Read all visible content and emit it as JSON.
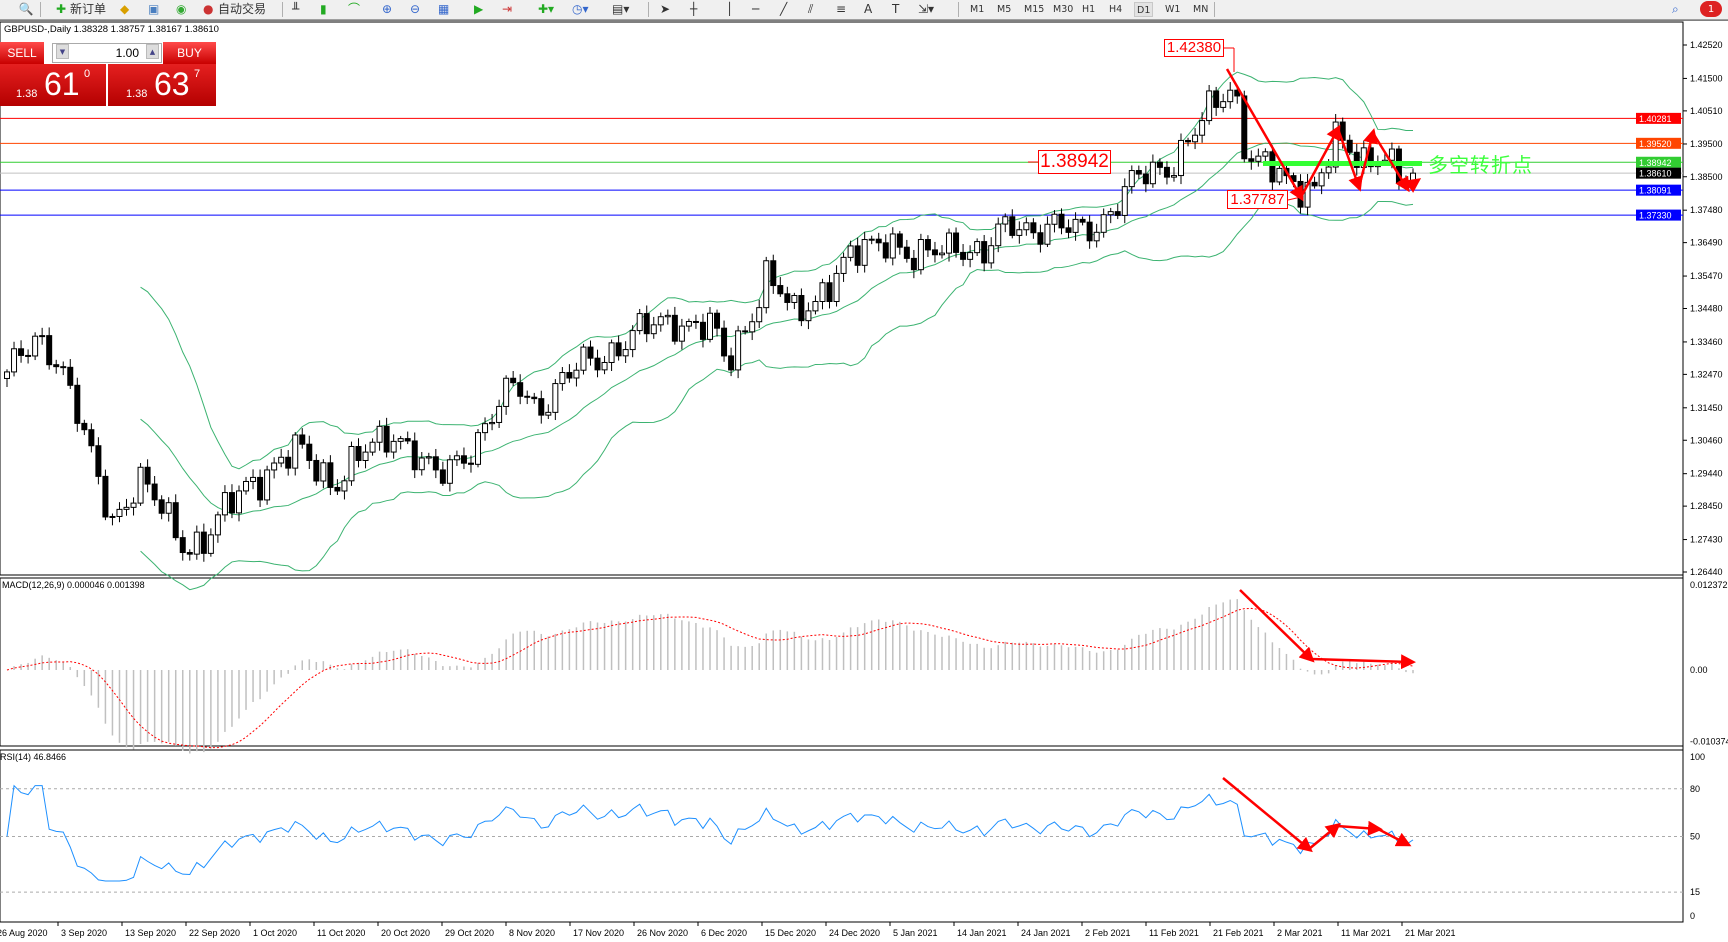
{
  "toolbar": {
    "new_order": "新订单",
    "auto_trading": "自动交易",
    "timeframes": [
      "M1",
      "M5",
      "M15",
      "M30",
      "H1",
      "H4",
      "D1",
      "W1",
      "MN"
    ],
    "active_timeframe": "D1"
  },
  "chart_title": "GBPUSD-,Daily  1.38328 1.38757 1.38167 1.38610",
  "one_click": {
    "sell": "SELL",
    "buy": "BUY",
    "volume": "1.00",
    "sell_prefix": "1.38",
    "sell_big": "61",
    "sell_point": "0",
    "buy_prefix": "1.38",
    "buy_big": "63",
    "buy_point": "7"
  },
  "macd_label": "MACD(12,26,9) 0.000046 0.001398",
  "rsi_label": "RSI(14) 46.8466",
  "annotations": {
    "high": "1.42380",
    "pivot": "1.38942",
    "low": "1.37787",
    "pivot_text": "多空转折点"
  },
  "colors": {
    "bull": "#ffffff",
    "bear": "#000000",
    "bands": "#3cb371",
    "macd_hist": "#c0c0c0",
    "macd_signal": "#ff0000",
    "rsi": "#1e90ff",
    "arrows": "#ff0000",
    "pivot": "#33ff33"
  },
  "chart_data": {
    "type": "candlestick",
    "symbol": "GBPUSD-",
    "timeframe": "Daily",
    "last_bar": {
      "open": 1.38328,
      "high": 1.38757,
      "low": 1.38167,
      "close": 1.3861
    },
    "price_ticks": [
      "1.42520",
      "1.41500",
      "1.40510",
      "1.39500",
      "1.38500",
      "1.37480",
      "1.36490",
      "1.35470",
      "1.34480",
      "1.33460",
      "1.32470",
      "1.31450",
      "1.30460",
      "1.29440",
      "1.28450",
      "1.27430",
      "1.26440"
    ],
    "ylim": [
      1.2644,
      1.4252
    ],
    "levels": [
      {
        "value": "1.40281",
        "color": "#ff0000"
      },
      {
        "value": "1.39520",
        "color": "#ff4500"
      },
      {
        "value": "1.38942",
        "color": "#32cd32"
      },
      {
        "value": "1.38610",
        "color": "#000000",
        "line": "#c0c0c0"
      },
      {
        "value": "1.38091",
        "color": "#0000ff"
      },
      {
        "value": "1.37330",
        "color": "#0000ff"
      }
    ],
    "x_labels": [
      "26 Aug 2020",
      "3 Sep 2020",
      "13 Sep 2020",
      "22 Sep 2020",
      "1 Oct 2020",
      "11 Oct 2020",
      "20 Oct 2020",
      "29 Oct 2020",
      "8 Nov 2020",
      "17 Nov 2020",
      "26 Nov 2020",
      "6 Dec 2020",
      "15 Dec 2020",
      "24 Dec 2020",
      "5 Jan 2021",
      "14 Jan 2021",
      "24 Jan 2021",
      "2 Feb 2021",
      "11 Feb 2021",
      "21 Feb 2021",
      "2 Mar 2021",
      "11 Mar 2021",
      "21 Mar 2021"
    ],
    "closes_approx": [
      [
        "2020-08-26",
        1.322
      ],
      [
        "2020-08-31",
        1.337
      ],
      [
        "2020-09-03",
        1.33
      ],
      [
        "2020-09-08",
        1.298
      ],
      [
        "2020-09-11",
        1.281
      ],
      [
        "2020-09-15",
        1.292
      ],
      [
        "2020-09-22",
        1.273
      ],
      [
        "2020-09-25",
        1.274
      ],
      [
        "2020-10-01",
        1.292
      ],
      [
        "2020-10-09",
        1.301
      ],
      [
        "2020-10-14",
        1.292
      ],
      [
        "2020-10-20",
        1.303
      ],
      [
        "2020-10-23",
        1.308
      ],
      [
        "2020-10-29",
        1.292
      ],
      [
        "2020-11-04",
        1.305
      ],
      [
        "2020-11-10",
        1.322
      ],
      [
        "2020-11-13",
        1.315
      ],
      [
        "2020-11-20",
        1.328
      ],
      [
        "2020-11-27",
        1.336
      ],
      [
        "2020-12-03",
        1.342
      ],
      [
        "2020-12-09",
        1.338
      ],
      [
        "2020-12-11",
        1.327
      ],
      [
        "2020-12-17",
        1.355
      ],
      [
        "2020-12-21",
        1.342
      ],
      [
        "2020-12-28",
        1.357
      ],
      [
        "2021-01-04",
        1.368
      ],
      [
        "2021-01-08",
        1.358
      ],
      [
        "2021-01-14",
        1.366
      ],
      [
        "2021-01-18",
        1.36
      ],
      [
        "2021-01-22",
        1.371
      ],
      [
        "2021-02-01",
        1.368
      ],
      [
        "2021-02-05",
        1.373
      ],
      [
        "2021-02-10",
        1.384
      ],
      [
        "2021-02-15",
        1.39
      ],
      [
        "2021-02-19",
        1.4
      ],
      [
        "2021-02-24",
        1.414
      ],
      [
        "2021-02-26",
        1.393
      ],
      [
        "2021-03-04",
        1.382
      ],
      [
        "2021-03-08",
        1.383
      ],
      [
        "2021-03-11",
        1.396
      ],
      [
        "2021-03-15",
        1.388
      ],
      [
        "2021-03-18",
        1.395
      ],
      [
        "2021-03-22",
        1.381
      ],
      [
        "2021-03-24",
        1.3861
      ]
    ],
    "macd": {
      "params": "12,26,9",
      "ticks": [
        "0.012372",
        "0.00",
        "-0.010374"
      ],
      "ylim": [
        -0.010374,
        0.012372
      ]
    },
    "rsi": {
      "period": 14,
      "ticks": [
        "100",
        "80",
        "50",
        "15",
        "0"
      ],
      "ylim": [
        0,
        100
      ]
    }
  }
}
